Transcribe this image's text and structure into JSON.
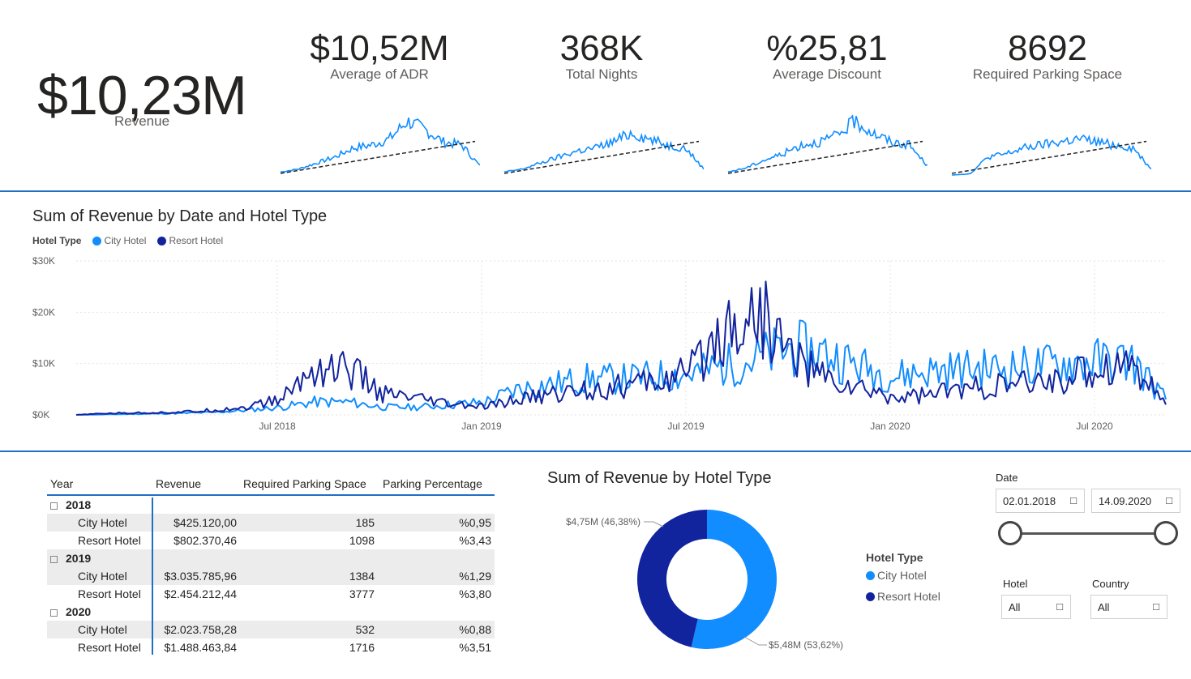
{
  "kpis": {
    "revenue": {
      "value": "$10,23M",
      "label": "Revenue"
    },
    "adr": {
      "value": "$10,52M",
      "label": "Average of ADR"
    },
    "nights": {
      "value": "368K",
      "label": "Total Nights"
    },
    "discount": {
      "value": "%25,81",
      "label": "Average Discount"
    },
    "parking": {
      "value": "8692",
      "label": "Required Parking Space"
    }
  },
  "line_section": {
    "title": "Sum of Revenue by Date and Hotel Type",
    "legend_title": "Hotel Type",
    "legend_items": [
      "City Hotel",
      "Resort Hotel"
    ]
  },
  "chart_data": [
    {
      "type": "line",
      "title": "Sum of Revenue by Date and Hotel Type",
      "y_tick_labels": [
        "$0K",
        "$10K",
        "$20K",
        "$30K"
      ],
      "x_tick_labels": [
        "Jul 2018",
        "Jan 2019",
        "Jul 2019",
        "Jan 2020",
        "Jul 2020"
      ],
      "ylim": [
        0,
        30000
      ],
      "grid": true,
      "legend_placement": "top-left",
      "x_points": [
        "2018-01",
        "2018-02",
        "2018-03",
        "2018-04",
        "2018-05",
        "2018-06",
        "2018-07",
        "2018-08",
        "2018-09",
        "2018-10",
        "2018-11",
        "2018-12",
        "2019-01",
        "2019-02",
        "2019-03",
        "2019-04",
        "2019-05",
        "2019-06",
        "2019-07",
        "2019-08",
        "2019-09",
        "2019-10",
        "2019-11",
        "2019-12",
        "2020-01",
        "2020-02",
        "2020-03",
        "2020-04",
        "2020-05",
        "2020-06",
        "2020-07",
        "2020-08",
        "2020-09"
      ],
      "series": [
        {
          "name": "City Hotel",
          "values": [
            0,
            100,
            200,
            300,
            500,
            900,
            1500,
            2500,
            2500,
            1500,
            1500,
            2000,
            2500,
            5000,
            6000,
            7000,
            7000,
            7500,
            8000,
            9500,
            11000,
            13000,
            12000,
            9500,
            7500,
            8500,
            9000,
            9000,
            9500,
            10000,
            10500,
            10500,
            3000
          ]
        },
        {
          "name": "Resort Hotel",
          "values": [
            0,
            300,
            400,
            500,
            900,
            1500,
            3000,
            9000,
            9000,
            4000,
            3000,
            2000,
            1500,
            3000,
            4000,
            5000,
            5500,
            6500,
            8000,
            17000,
            20000,
            12000,
            7000,
            5000,
            3500,
            4000,
            5000,
            5500,
            6000,
            7000,
            9000,
            10500,
            2000
          ]
        }
      ]
    },
    {
      "type": "pie",
      "title": "Sum of Revenue by Hotel Type",
      "categories": [
        "City Hotel",
        "Resort Hotel"
      ],
      "values": [
        53.62,
        46.38
      ],
      "labels": [
        "$5,48M (53,62%)",
        "$4,75M (46,38%)"
      ],
      "legend_title": "Hotel Type",
      "legend_placement": "right"
    },
    {
      "type": "table",
      "columns": [
        "Year",
        "Revenue",
        "Required Parking Space",
        "Parking Percentage"
      ],
      "groups": [
        {
          "year": "2018",
          "rows": [
            {
              "name": "City Hotel",
              "revenue": "$425.120,00",
              "parking": "185",
              "pct": "%0,95"
            },
            {
              "name": "Resort Hotel",
              "revenue": "$802.370,46",
              "parking": "1098",
              "pct": "%3,43"
            }
          ]
        },
        {
          "year": "2019",
          "rows": [
            {
              "name": "City Hotel",
              "revenue": "$3.035.785,96",
              "parking": "1384",
              "pct": "%1,29"
            },
            {
              "name": "Resort Hotel",
              "revenue": "$2.454.212,44",
              "parking": "3777",
              "pct": "%3,80"
            }
          ]
        },
        {
          "year": "2020",
          "rows": [
            {
              "name": "City Hotel",
              "revenue": "$2.023.758,28",
              "parking": "532",
              "pct": "%0,88"
            },
            {
              "name": "Resort Hotel",
              "revenue": "$1.488.463,84",
              "parking": "1716",
              "pct": "%3,51"
            }
          ]
        }
      ]
    }
  ],
  "donut_section": {
    "title": "Sum of Revenue by Hotel Type",
    "legend_title": "Hotel Type",
    "legend_items": [
      "City Hotel",
      "Resort Hotel"
    ],
    "label_city": "$5,48M (53,62%)",
    "label_resort": "$4,75M (46,38%)"
  },
  "slicers": {
    "date_label": "Date",
    "date_start": "02.01.2018",
    "date_end": "14.09.2020",
    "calendar_icon": "calendar-icon",
    "hotel_label": "Hotel",
    "hotel_value": "All",
    "country_label": "Country",
    "country_value": "All",
    "dropdown_icon": "dropdown-icon"
  },
  "colors": {
    "city": "#118dff",
    "resort": "#12239e",
    "accent": "#1f6fc4"
  }
}
